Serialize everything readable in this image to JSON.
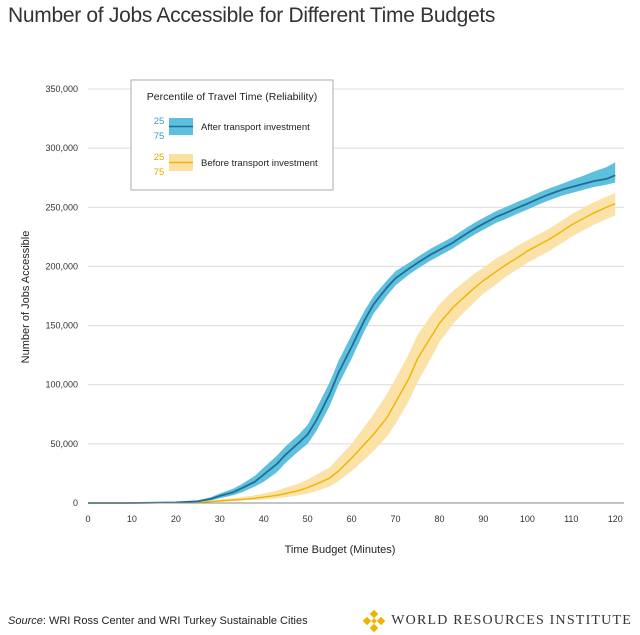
{
  "title": "Number of Jobs Accessible for Different Time Budgets",
  "footer": {
    "source_label": "Source",
    "source_text": ": WRI Ross Center and WRI Turkey Sustainable Cities",
    "brand": "WORLD RESOURCES INSTITUTE",
    "logo_icon": "wri-logo-icon"
  },
  "colors": {
    "after": "#3a9cc4",
    "after_band": "#5ebfdf",
    "before": "#f0b400",
    "before_band": "#fbe0a3"
  },
  "chart_data": {
    "type": "line",
    "title": "Number of Jobs Accessible for Different Time Budgets",
    "xlabel": "Time Budget (Minutes)",
    "ylabel": "Number of Jobs Accessible",
    "xlim": [
      0,
      122
    ],
    "ylim": [
      0,
      350000
    ],
    "xticks": [
      0,
      10,
      20,
      30,
      40,
      50,
      60,
      70,
      80,
      90,
      100,
      110,
      120
    ],
    "yticks": [
      0,
      50000,
      100000,
      150000,
      200000,
      250000,
      300000,
      350000
    ],
    "ytick_labels": [
      "0",
      "50,000",
      "100,000",
      "150,000",
      "200,000",
      "250,000",
      "300,000",
      "350,000"
    ],
    "grid": "horizontal",
    "legend": {
      "title": "Percentile of Travel Time (Reliability)",
      "placement": "top-left",
      "entries": [
        {
          "name": "After transport investment",
          "upper_pct": "25",
          "lower_pct": "75"
        },
        {
          "name": "Before transport investment",
          "upper_pct": "25",
          "lower_pct": "75"
        }
      ]
    },
    "x": [
      0,
      10,
      20,
      25,
      28,
      30,
      33,
      35,
      38,
      40,
      43,
      45,
      48,
      50,
      52,
      55,
      57,
      60,
      63,
      65,
      68,
      70,
      73,
      75,
      78,
      80,
      83,
      85,
      88,
      90,
      93,
      95,
      98,
      100,
      103,
      105,
      108,
      110,
      113,
      115,
      118,
      120
    ],
    "series": [
      {
        "name": "After transport investment",
        "median": [
          0,
          0,
          500,
          1500,
          3500,
          6000,
          9000,
          12500,
          18000,
          24000,
          33000,
          41000,
          51000,
          58000,
          70000,
          92000,
          110000,
          132000,
          155000,
          168000,
          182000,
          190000,
          198000,
          203000,
          210000,
          214000,
          220000,
          225000,
          232000,
          236000,
          242000,
          245000,
          250000,
          253000,
          258000,
          261000,
          265000,
          267000,
          270000,
          272000,
          274000,
          277000
        ],
        "p25": [
          0,
          0,
          800,
          2200,
          5000,
          8000,
          12000,
          16000,
          23000,
          30000,
          40000,
          48000,
          58000,
          66000,
          80000,
          102000,
          120000,
          142000,
          163000,
          175000,
          188000,
          196000,
          203000,
          208000,
          215000,
          219000,
          225000,
          230000,
          237000,
          241000,
          247000,
          250000,
          255000,
          258000,
          263000,
          266000,
          270000,
          273000,
          277000,
          280000,
          284000,
          288000
        ],
        "p75": [
          0,
          0,
          300,
          900,
          2200,
          4000,
          6500,
          9000,
          14000,
          18000,
          26000,
          34000,
          44000,
          50000,
          61000,
          82000,
          100000,
          122000,
          146000,
          160000,
          175000,
          184000,
          193000,
          198000,
          205000,
          209000,
          215000,
          220000,
          227000,
          231000,
          237000,
          240000,
          245000,
          248000,
          253000,
          256000,
          260000,
          262000,
          265000,
          267000,
          269000,
          271000
        ]
      },
      {
        "name": "Before transport investment",
        "median": [
          0,
          0,
          300,
          700,
          1200,
          1800,
          2500,
          3000,
          4000,
          5000,
          6500,
          8000,
          10500,
          13000,
          16000,
          21000,
          27000,
          38000,
          50000,
          58000,
          72000,
          85000,
          105000,
          122000,
          140000,
          152000,
          165000,
          172000,
          182000,
          188000,
          196000,
          201000,
          208000,
          213000,
          219000,
          223000,
          230000,
          235000,
          241000,
          245000,
          250000,
          253000
        ],
        "p25": [
          0,
          0,
          500,
          1200,
          2000,
          3000,
          4000,
          5000,
          6500,
          8000,
          10500,
          13000,
          16500,
          20000,
          24000,
          30000,
          38000,
          50000,
          65000,
          75000,
          92000,
          105000,
          126000,
          142000,
          158000,
          168000,
          179000,
          185000,
          194000,
          199000,
          207000,
          211000,
          218000,
          222000,
          228000,
          232000,
          239000,
          244000,
          250000,
          254000,
          259000,
          262000
        ],
        "p75": [
          0,
          0,
          150,
          400,
          700,
          1000,
          1500,
          2000,
          2500,
          3000,
          4000,
          5000,
          6500,
          8000,
          10000,
          14000,
          18500,
          27000,
          37000,
          44000,
          56000,
          67000,
          86000,
          102000,
          122000,
          136000,
          151000,
          159000,
          170000,
          177000,
          185000,
          191000,
          198000,
          203000,
          209000,
          213000,
          220000,
          225000,
          231000,
          235000,
          240000,
          243000
        ]
      }
    ]
  }
}
